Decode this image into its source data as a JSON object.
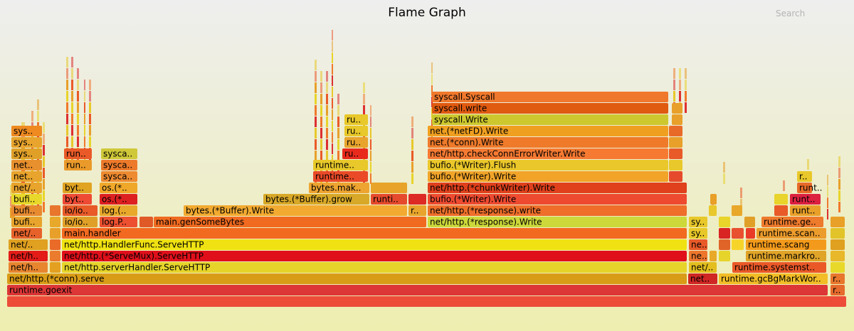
{
  "header": {
    "title": "Flame Graph",
    "search_label": "Search"
  },
  "chart_data": {
    "type": "flamegraph",
    "title": "Flame Graph",
    "frames": [
      {
        "label": "",
        "level": 0,
        "start": 10,
        "end": 1190,
        "color": "#ec4c38"
      },
      {
        "label": "runtime.goexit",
        "level": 1,
        "start": 10,
        "end": 1164,
        "color": "#dd3636"
      },
      {
        "label": "r..",
        "level": 1,
        "start": 1167,
        "end": 1188,
        "color": "#e66a2c"
      },
      {
        "label": "net/http.(*conn).serve",
        "level": 2,
        "start": 10,
        "end": 966,
        "color": "#d99c17"
      },
      {
        "label": "net..",
        "level": 2,
        "start": 967,
        "end": 1009,
        "color": "#d02624"
      },
      {
        "label": "runtime.gcBgMarkWor..",
        "level": 2,
        "start": 1010,
        "end": 1164,
        "color": "#f2bd26"
      },
      {
        "label": "r..",
        "level": 2,
        "start": 1167,
        "end": 1188,
        "color": "#e8762d"
      },
      {
        "label": "net/h..",
        "level": 3,
        "start": 12,
        "end": 68,
        "color": "#e8852f"
      },
      {
        "label": "",
        "level": 3,
        "start": 70,
        "end": 86,
        "color": "#e4a020"
      },
      {
        "label": "net/http.serverHandler.ServeHTTP",
        "level": 3,
        "start": 87,
        "end": 966,
        "color": "#e6d42a"
      },
      {
        "label": "net/..",
        "level": 3,
        "start": 968,
        "end": 1008,
        "color": "#e3be1e"
      },
      {
        "label": "runtime.systemst..",
        "level": 3,
        "start": 1029,
        "end": 1162,
        "color": "#ea5828"
      },
      {
        "label": "",
        "level": 3,
        "start": 1167,
        "end": 1188,
        "color": "#e8d82a"
      },
      {
        "label": "net/h..",
        "level": 4,
        "start": 12,
        "end": 68,
        "color": "#e31c18"
      },
      {
        "label": "",
        "level": 4,
        "start": 70,
        "end": 86,
        "color": "#eb7b2d"
      },
      {
        "label": "net/http.(*ServeMux).ServeHTTP",
        "level": 4,
        "start": 87,
        "end": 966,
        "color": "#e0101a"
      },
      {
        "label": "ne..",
        "level": 4,
        "start": 968,
        "end": 995,
        "color": "#ed762c"
      },
      {
        "label": "",
        "level": 4,
        "start": 997,
        "end": 1008,
        "color": "#e8a828"
      },
      {
        "label": "",
        "level": 4,
        "start": 1010,
        "end": 1027,
        "color": "#e6d42a"
      },
      {
        "label": "runtime.markro..",
        "level": 4,
        "start": 1048,
        "end": 1162,
        "color": "#e0a428"
      },
      {
        "label": "",
        "level": 4,
        "start": 1167,
        "end": 1188,
        "color": "#e8b82a"
      },
      {
        "label": "net/..",
        "level": 5,
        "start": 12,
        "end": 68,
        "color": "#e0a020"
      },
      {
        "label": "",
        "level": 5,
        "start": 70,
        "end": 86,
        "color": "#ea6a28"
      },
      {
        "label": "net/http.HandlerFunc.ServeHTTP",
        "level": 5,
        "start": 87,
        "end": 966,
        "color": "#f0e212"
      },
      {
        "label": "ne..",
        "level": 5,
        "start": 968,
        "end": 995,
        "color": "#e85a28"
      },
      {
        "label": "",
        "level": 5,
        "start": 1010,
        "end": 1027,
        "color": "#e06428"
      },
      {
        "label": "",
        "level": 5,
        "start": 1028,
        "end": 1046,
        "color": "#f7d42a"
      },
      {
        "label": "runtime.scang",
        "level": 5,
        "start": 1048,
        "end": 1162,
        "color": "#f39a1c"
      },
      {
        "label": "",
        "level": 5,
        "start": 1167,
        "end": 1188,
        "color": "#e0a020"
      },
      {
        "label": "net/..",
        "level": 6,
        "start": 16,
        "end": 60,
        "color": "#e6622a"
      },
      {
        "label": "",
        "level": 6,
        "start": 70,
        "end": 86,
        "color": "#e8a02a"
      },
      {
        "label": "main.handler",
        "level": 6,
        "start": 87,
        "end": 966,
        "color": "#f26a20"
      },
      {
        "label": "sy..",
        "level": 6,
        "start": 968,
        "end": 995,
        "color": "#e8c828"
      },
      {
        "label": "",
        "level": 6,
        "start": 1010,
        "end": 1027,
        "color": "#d92424"
      },
      {
        "label": "",
        "level": 6,
        "start": 1028,
        "end": 1046,
        "color": "#e85030"
      },
      {
        "label": "",
        "level": 6,
        "start": 1048,
        "end": 1062,
        "color": "#ea3a28"
      },
      {
        "label": "runtime.scan..",
        "level": 6,
        "start": 1063,
        "end": 1162,
        "color": "#ec9c2c"
      },
      {
        "label": "",
        "level": 6,
        "start": 1167,
        "end": 1188,
        "color": "#e2c42a"
      },
      {
        "label": "bufi..",
        "level": 7,
        "start": 16,
        "end": 60,
        "color": "#e8a42c"
      },
      {
        "label": "",
        "level": 7,
        "start": 70,
        "end": 86,
        "color": "#e8a82a"
      },
      {
        "label": "io/io..",
        "level": 7,
        "start": 88,
        "end": 138,
        "color": "#e0a028"
      },
      {
        "label": "log.P..",
        "level": 7,
        "start": 140,
        "end": 194,
        "color": "#ed5030"
      },
      {
        "label": "",
        "level": 7,
        "start": 196,
        "end": 216,
        "color": "#e05a28"
      },
      {
        "label": "main.genSomeBytes",
        "level": 7,
        "start": 216,
        "end": 600,
        "color": "#f06a20"
      },
      {
        "label": "net/http.(*response).Write",
        "level": 7,
        "start": 601,
        "end": 966,
        "color": "#cdd83a"
      },
      {
        "label": "sy..",
        "level": 7,
        "start": 968,
        "end": 995,
        "color": "#e8c82a"
      },
      {
        "label": "",
        "level": 7,
        "start": 1010,
        "end": 1027,
        "color": "#e8d42a"
      },
      {
        "label": "",
        "level": 7,
        "start": 1046,
        "end": 1062,
        "color": "#e0a028"
      },
      {
        "label": "runtime.ge..",
        "level": 7,
        "start": 1070,
        "end": 1158,
        "color": "#ee7a2c"
      },
      {
        "label": "",
        "level": 7,
        "start": 1167,
        "end": 1188,
        "color": "#e8a028"
      },
      {
        "label": "bufi..",
        "level": 8,
        "start": 16,
        "end": 60,
        "color": "#e88a30"
      },
      {
        "label": "",
        "level": 8,
        "start": 70,
        "end": 86,
        "color": "#e8762c"
      },
      {
        "label": "io/io..",
        "level": 8,
        "start": 88,
        "end": 138,
        "color": "#e85a28"
      },
      {
        "label": "log.(..",
        "level": 8,
        "start": 140,
        "end": 194,
        "color": "#e8a82a"
      },
      {
        "label": "bytes.(*Buffer).Write",
        "level": 8,
        "start": 258,
        "end": 573,
        "color": "#f2aa30"
      },
      {
        "label": "r..",
        "level": 8,
        "start": 574,
        "end": 600,
        "color": "#e8a42c"
      },
      {
        "label": "net/http.(*response).write",
        "level": 8,
        "start": 601,
        "end": 966,
        "color": "#ee6e2a"
      },
      {
        "label": "",
        "level": 8,
        "start": 996,
        "end": 1008,
        "color": "#e8c82a"
      },
      {
        "label": "",
        "level": 8,
        "start": 1028,
        "end": 1044,
        "color": "#e8a82a"
      },
      {
        "label": "",
        "level": 8,
        "start": 1088,
        "end": 1108,
        "color": "#e85a28"
      },
      {
        "label": "runt..",
        "level": 8,
        "start": 1110,
        "end": 1154,
        "color": "#e8a02a"
      },
      {
        "label": "bufi..",
        "level": 9,
        "start": 16,
        "end": 60,
        "color": "#e8d82a"
      },
      {
        "label": "byt..",
        "level": 9,
        "start": 88,
        "end": 130,
        "color": "#ee4a34"
      },
      {
        "label": "os.(*..",
        "level": 9,
        "start": 140,
        "end": 194,
        "color": "#dd2020"
      },
      {
        "label": "bytes.(*Buffer).grow",
        "level": 9,
        "start": 370,
        "end": 520,
        "color": "#d8a828"
      },
      {
        "label": "runti..",
        "level": 9,
        "start": 521,
        "end": 573,
        "color": "#e64a2c"
      },
      {
        "label": "",
        "level": 9,
        "start": 574,
        "end": 600,
        "color": "#dd2a24"
      },
      {
        "label": "bufio.(*Writer).Write",
        "level": 9,
        "start": 601,
        "end": 966,
        "color": "#ee4a30"
      },
      {
        "label": "",
        "level": 9,
        "start": 998,
        "end": 1008,
        "color": "#e8a028"
      },
      {
        "label": "",
        "level": 9,
        "start": 1088,
        "end": 1108,
        "color": "#e8d42a"
      },
      {
        "label": "runt..",
        "level": 9,
        "start": 1110,
        "end": 1154,
        "color": "#dd2040"
      },
      {
        "label": "net/..",
        "level": 10,
        "start": 16,
        "end": 60,
        "color": "#e8a42c"
      },
      {
        "label": "byt..",
        "level": 10,
        "start": 88,
        "end": 130,
        "color": "#e0a422"
      },
      {
        "label": "os.(*..",
        "level": 10,
        "start": 140,
        "end": 194,
        "color": "#f0a82a"
      },
      {
        "label": "bytes.mak..",
        "level": 10,
        "start": 434,
        "end": 520,
        "color": "#eea430"
      },
      {
        "label": "",
        "level": 10,
        "start": 521,
        "end": 573,
        "color": "#e8a42a"
      },
      {
        "label": "net/http.(*chunkWriter).Write",
        "level": 10,
        "start": 601,
        "end": 966,
        "color": "#e0401c"
      },
      {
        "label": "runt..",
        "level": 10,
        "start": 1120,
        "end": 1142,
        "color": "#e86a28"
      },
      {
        "label": "net..",
        "level": 11,
        "start": 16,
        "end": 60,
        "color": "#e8a42c"
      },
      {
        "label": "sysca..",
        "level": 11,
        "start": 142,
        "end": 194,
        "color": "#ee8a30"
      },
      {
        "label": "runtime..",
        "level": 11,
        "start": 440,
        "end": 518,
        "color": "#ea4a28"
      },
      {
        "label": "bufio.(*Writer).Write",
        "level": 11,
        "start": 601,
        "end": 940,
        "color": "#f1a428"
      },
      {
        "label": "",
        "level": 11,
        "start": 940,
        "end": 960,
        "color": "#e64a2c"
      },
      {
        "label": "r..",
        "level": 11,
        "start": 1120,
        "end": 1142,
        "color": "#e8c82a"
      },
      {
        "label": "net..",
        "level": 12,
        "start": 16,
        "end": 60,
        "color": "#e8902e"
      },
      {
        "label": "run..",
        "level": 12,
        "start": 90,
        "end": 130,
        "color": "#ea9a2a"
      },
      {
        "label": "sysca..",
        "level": 12,
        "start": 142,
        "end": 194,
        "color": "#ec7a2a"
      },
      {
        "label": "runtime..",
        "level": 12,
        "start": 440,
        "end": 518,
        "color": "#e8c82a"
      },
      {
        "label": "bufio.(*Writer).Flush",
        "level": 12,
        "start": 601,
        "end": 940,
        "color": "#eac72a"
      },
      {
        "label": "",
        "level": 12,
        "start": 940,
        "end": 960,
        "color": "#e8c82a"
      },
      {
        "label": "sys..",
        "level": 13,
        "start": 16,
        "end": 60,
        "color": "#e0a028"
      },
      {
        "label": "run..",
        "level": 13,
        "start": 90,
        "end": 130,
        "color": "#ea5a28"
      },
      {
        "label": "sysca..",
        "level": 13,
        "start": 142,
        "end": 194,
        "color": "#cfc838"
      },
      {
        "label": "ru..",
        "level": 13,
        "start": 481,
        "end": 518,
        "color": "#e82a1c"
      },
      {
        "label": "net/http.checkConnErrorWriter.Write",
        "level": 13,
        "start": 601,
        "end": 940,
        "color": "#f67a32"
      },
      {
        "label": "",
        "level": 13,
        "start": 940,
        "end": 960,
        "color": "#e85a28"
      },
      {
        "label": "sys..",
        "level": 14,
        "start": 16,
        "end": 60,
        "color": "#e8a42c"
      },
      {
        "label": "ru..",
        "level": 14,
        "start": 484,
        "end": 518,
        "color": "#e8a42c"
      },
      {
        "label": "net.(*conn).Write",
        "level": 14,
        "start": 601,
        "end": 940,
        "color": "#ee7a2a"
      },
      {
        "label": "",
        "level": 14,
        "start": 940,
        "end": 960,
        "color": "#e8a02a"
      },
      {
        "label": "sys..",
        "level": 15,
        "start": 16,
        "end": 60,
        "color": "#ee8a20"
      },
      {
        "label": "ru..",
        "level": 15,
        "start": 484,
        "end": 518,
        "color": "#e8c82a"
      },
      {
        "label": "net.(*netFD).Write",
        "level": 15,
        "start": 601,
        "end": 940,
        "color": "#f0a020"
      },
      {
        "label": "",
        "level": 15,
        "start": 940,
        "end": 960,
        "color": "#e86a28"
      },
      {
        "label": "ru..",
        "level": 16,
        "start": 484,
        "end": 518,
        "color": "#e8c82a"
      },
      {
        "label": "syscall.Write",
        "level": 16,
        "start": 607,
        "end": 940,
        "color": "#cdc82e"
      },
      {
        "label": "",
        "level": 16,
        "start": 944,
        "end": 960,
        "color": "#e8a02a"
      },
      {
        "label": "syscall.write",
        "level": 17,
        "start": 607,
        "end": 940,
        "color": "#e05a10"
      },
      {
        "label": "",
        "level": 17,
        "start": 944,
        "end": 960,
        "color": "#e8a02a"
      },
      {
        "label": "syscall.Syscall",
        "level": 18,
        "start": 607,
        "end": 940,
        "color": "#f0782c"
      }
    ]
  }
}
